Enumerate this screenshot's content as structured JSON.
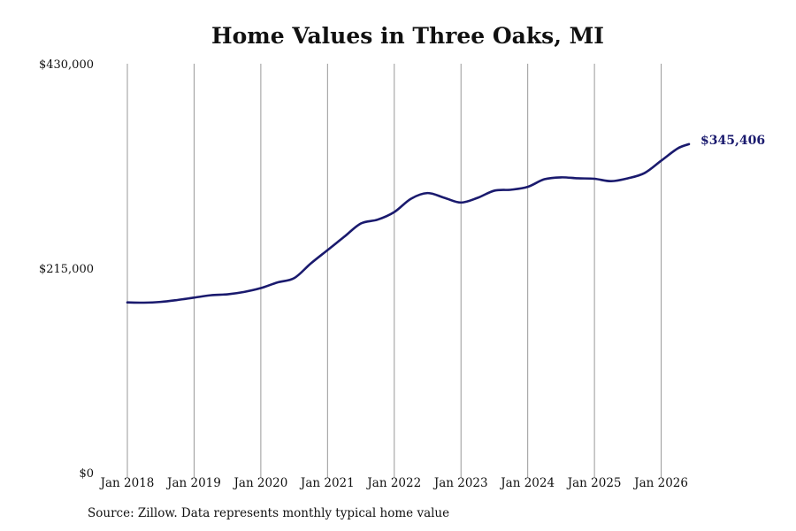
{
  "chart_data": {
    "type": "line",
    "title": "Home Values in Three Oaks, MI",
    "xlabel": "",
    "ylabel": "",
    "ylim": [
      0,
      430000
    ],
    "y_ticks": [
      {
        "value": 0,
        "label": "$0"
      },
      {
        "value": 215000,
        "label": "$215,000"
      },
      {
        "value": 430000,
        "label": "$430,000"
      }
    ],
    "x_ticks": [
      {
        "value": "2018-01",
        "label": "Jan 2018"
      },
      {
        "value": "2019-01",
        "label": "Jan 2019"
      },
      {
        "value": "2020-01",
        "label": "Jan 2020"
      },
      {
        "value": "2021-01",
        "label": "Jan 2021"
      },
      {
        "value": "2022-01",
        "label": "Jan 2022"
      },
      {
        "value": "2023-01",
        "label": "Jan 2023"
      },
      {
        "value": "2024-01",
        "label": "Jan 2024"
      },
      {
        "value": "2025-01",
        "label": "Jan 2025"
      },
      {
        "value": "2026-01",
        "label": "Jan 2026"
      }
    ],
    "xlim": [
      "2018-01",
      "2026-06"
    ],
    "grid": {
      "vertical": true,
      "horizontal": false
    },
    "line_color": "#1a1a6e",
    "grid_color": "#999999",
    "end_label": "$345,406",
    "series": [
      {
        "points": [
          {
            "x": "2018-01",
            "y": 179000
          },
          {
            "x": "2018-04",
            "y": 178700
          },
          {
            "x": "2018-07",
            "y": 179500
          },
          {
            "x": "2018-10",
            "y": 181500
          },
          {
            "x": "2019-01",
            "y": 184000
          },
          {
            "x": "2019-04",
            "y": 186500
          },
          {
            "x": "2019-07",
            "y": 187500
          },
          {
            "x": "2019-10",
            "y": 190000
          },
          {
            "x": "2020-01",
            "y": 194000
          },
          {
            "x": "2020-04",
            "y": 200000
          },
          {
            "x": "2020-07",
            "y": 204500
          },
          {
            "x": "2020-10",
            "y": 220000
          },
          {
            "x": "2021-01",
            "y": 234000
          },
          {
            "x": "2021-04",
            "y": 248000
          },
          {
            "x": "2021-07",
            "y": 262000
          },
          {
            "x": "2021-10",
            "y": 266000
          },
          {
            "x": "2022-01",
            "y": 274000
          },
          {
            "x": "2022-04",
            "y": 288000
          },
          {
            "x": "2022-07",
            "y": 294000
          },
          {
            "x": "2022-10",
            "y": 289000
          },
          {
            "x": "2023-01",
            "y": 284000
          },
          {
            "x": "2023-04",
            "y": 289000
          },
          {
            "x": "2023-07",
            "y": 296500
          },
          {
            "x": "2023-10",
            "y": 297500
          },
          {
            "x": "2024-01",
            "y": 300500
          },
          {
            "x": "2024-04",
            "y": 308500
          },
          {
            "x": "2024-07",
            "y": 310500
          },
          {
            "x": "2024-10",
            "y": 309500
          },
          {
            "x": "2025-01",
            "y": 309000
          },
          {
            "x": "2025-04",
            "y": 306500
          },
          {
            "x": "2025-07",
            "y": 309500
          },
          {
            "x": "2025-10",
            "y": 315000
          },
          {
            "x": "2026-01",
            "y": 328000
          },
          {
            "x": "2026-04",
            "y": 341000
          },
          {
            "x": "2026-06",
            "y": 345406
          }
        ]
      }
    ]
  },
  "source_note": "Source: Zillow. Data represents monthly typical home value"
}
